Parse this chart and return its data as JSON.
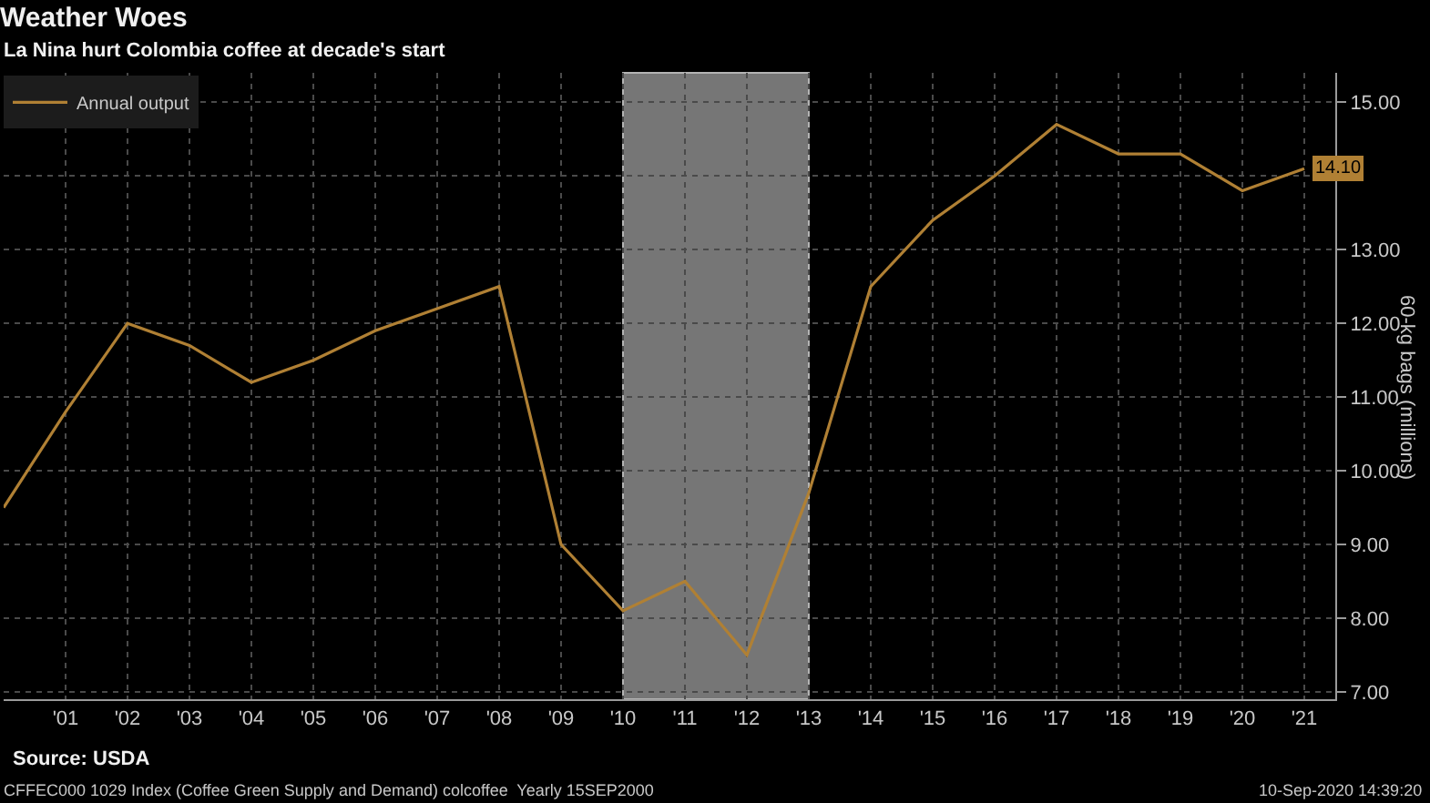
{
  "chart_data": {
    "type": "line",
    "title": "Weather Woes",
    "subtitle": "La Nina hurt Colombia coffee at decade's start",
    "ylabel": "60-kg bags (millions)",
    "x": [
      2000,
      2001,
      2002,
      2003,
      2004,
      2005,
      2006,
      2007,
      2008,
      2009,
      2010,
      2011,
      2012,
      2013,
      2014,
      2015,
      2016,
      2017,
      2018,
      2019,
      2020,
      2021
    ],
    "series": [
      {
        "name": "Annual output",
        "color": "#b08034",
        "values": [
          9.5,
          10.8,
          12.0,
          11.7,
          11.2,
          11.5,
          11.9,
          12.2,
          12.5,
          9.0,
          8.1,
          8.5,
          7.5,
          9.7,
          12.5,
          13.4,
          14.0,
          14.7,
          14.3,
          14.3,
          13.8,
          14.1
        ],
        "value_labels": [
          null,
          null,
          null,
          null,
          null,
          null,
          null,
          null,
          null,
          null,
          null,
          null,
          null,
          null,
          null,
          null,
          null,
          null,
          null,
          null,
          null,
          "14.10"
        ]
      }
    ],
    "xlim": [
      2000,
      2021.5
    ],
    "ylim": [
      6.9,
      15.4
    ],
    "xticks": [
      {
        "value": 2001,
        "label": "'01"
      },
      {
        "value": 2002,
        "label": "'02"
      },
      {
        "value": 2003,
        "label": "'03"
      },
      {
        "value": 2004,
        "label": "'04"
      },
      {
        "value": 2005,
        "label": "'05"
      },
      {
        "value": 2006,
        "label": "'06"
      },
      {
        "value": 2007,
        "label": "'07"
      },
      {
        "value": 2008,
        "label": "'08"
      },
      {
        "value": 2009,
        "label": "'09"
      },
      {
        "value": 2010,
        "label": "'10"
      },
      {
        "value": 2011,
        "label": "'11"
      },
      {
        "value": 2012,
        "label": "'12"
      },
      {
        "value": 2013,
        "label": "'13"
      },
      {
        "value": 2014,
        "label": "'14"
      },
      {
        "value": 2015,
        "label": "'15"
      },
      {
        "value": 2016,
        "label": "'16"
      },
      {
        "value": 2017,
        "label": "'17"
      },
      {
        "value": 2018,
        "label": "'18"
      },
      {
        "value": 2019,
        "label": "'19"
      },
      {
        "value": 2020,
        "label": "'20"
      },
      {
        "value": 2021,
        "label": "'21"
      }
    ],
    "yticks": [
      {
        "value": 7,
        "label": "7.00"
      },
      {
        "value": 8,
        "label": "8.00"
      },
      {
        "value": 9,
        "label": "9.00"
      },
      {
        "value": 10,
        "label": "10.00"
      },
      {
        "value": 11,
        "label": "11.00"
      },
      {
        "value": 12,
        "label": "12.00"
      },
      {
        "value": 13,
        "label": "13.00"
      },
      {
        "value": 14,
        "label": null
      },
      {
        "value": 15,
        "label": "15.00"
      }
    ],
    "grid": true,
    "legend": "top left",
    "line_style": "solid",
    "bands": [
      {
        "axis": "x",
        "from": 2010,
        "to": 2013,
        "color": "#767676"
      }
    ],
    "annotations": [
      "Source: USDA",
      "CFFEC000 1029 Index (Coffee Green Supply and Demand) colcoffee  Yearly 15SEP2000",
      "10-Sep-2020 14:39:20"
    ]
  }
}
